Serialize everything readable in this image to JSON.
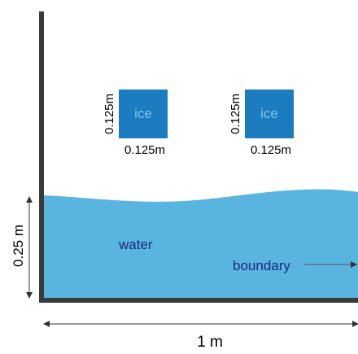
{
  "colors": {
    "wall": "#3a3a3a",
    "water": "#5ab4e0",
    "ice": "#1c7cc0",
    "ice_label": "#7fc4ec",
    "water_label": "#1a2a78",
    "arrow": "#555555"
  },
  "ice_blocks": [
    {
      "label": "ice",
      "width_label": "0.125m",
      "height_label": "0.125m"
    },
    {
      "label": "ice",
      "width_label": "0.125m",
      "height_label": "0.125m"
    }
  ],
  "water": {
    "label": "water",
    "depth_label": "0.25 m"
  },
  "boundary": {
    "label": "boundary"
  },
  "domain": {
    "width_label": "1 m"
  }
}
